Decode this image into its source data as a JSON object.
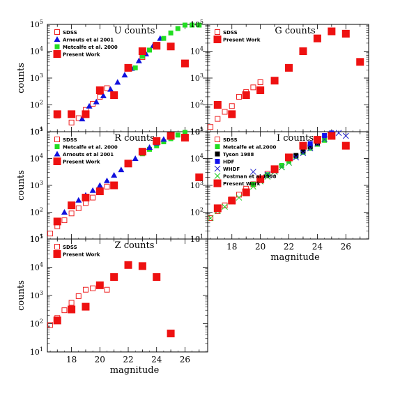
{
  "colors": {
    "sdss": "#ee2222",
    "present": "#ee1111",
    "arnouts": "#1111dd",
    "metcalfe": "#22dd22",
    "tyson": "#000000",
    "hdf": "#1111ee",
    "whdf": "#2222cc",
    "postman": "#22cc22"
  },
  "labels": {
    "counts_ylabel": "counts",
    "magnitude_xlabel": "magnitude"
  },
  "chart_data": [
    {
      "type": "scatter",
      "panel": "U",
      "title": "U counts",
      "ylabel": "counts",
      "xlabel": "",
      "xlim": [
        16.3,
        27.6
      ],
      "ylim": [
        10,
        100000
      ],
      "yscale": "log",
      "legend": [
        "SDSS",
        "Arnouts et al 2001",
        "Metcalfe et al. 2000",
        "Present Work"
      ],
      "legend_position": "top-left",
      "series": [
        {
          "name": "SDSS",
          "marker": "open-square",
          "points": [
            [
              17,
              40
            ],
            [
              18,
              22
            ],
            [
              18.5,
              32
            ],
            [
              19,
              65
            ],
            [
              19.5,
              110
            ],
            [
              20,
              200
            ],
            [
              20.5,
              420
            ],
            [
              23,
              6000
            ]
          ]
        },
        {
          "name": "Arnouts et al 2001",
          "marker": "triangle",
          "points": [
            [
              18.75,
              30
            ],
            [
              19.25,
              90
            ],
            [
              19.75,
              130
            ],
            [
              20.25,
              220
            ],
            [
              20.75,
              380
            ],
            [
              21.25,
              700
            ],
            [
              21.75,
              1300
            ],
            [
              22.25,
              2300
            ],
            [
              22.75,
              4400
            ],
            [
              23.25,
              8000
            ],
            [
              23.75,
              16000
            ],
            [
              24.25,
              30000
            ]
          ]
        },
        {
          "name": "Metcalfe et al. 2000",
          "marker": "filled-square",
          "points": [
            [
              22.5,
              2400
            ],
            [
              23,
              6500
            ],
            [
              23.5,
              11000
            ],
            [
              24,
              18000
            ],
            [
              24.5,
              30000
            ],
            [
              25,
              48000
            ],
            [
              25.5,
              70000
            ],
            [
              26,
              95000
            ],
            [
              26.5,
              120000
            ],
            [
              27,
              140000
            ]
          ]
        },
        {
          "name": "Present Work",
          "marker": "big-filled-square",
          "points": [
            [
              17,
              45
            ],
            [
              18,
              45
            ],
            [
              19,
              45
            ],
            [
              20,
              350
            ],
            [
              21,
              230
            ],
            [
              22,
              2400
            ],
            [
              23,
              10000
            ],
            [
              24,
              16000
            ],
            [
              25,
              15000
            ],
            [
              26,
              3500
            ]
          ]
        }
      ]
    },
    {
      "type": "scatter",
      "panel": "G",
      "title": "G counts",
      "xlim": [
        16.3,
        27.6
      ],
      "ylim": [
        10,
        100000
      ],
      "yscale": "log",
      "legend": [
        "SDSS",
        "Present Work"
      ],
      "legend_position": "top-left",
      "series": [
        {
          "name": "SDSS",
          "marker": "open-square",
          "points": [
            [
              16.5,
              15
            ],
            [
              17,
              30
            ],
            [
              17.5,
              55
            ],
            [
              18,
              90
            ],
            [
              18.5,
              200
            ],
            [
              19,
              300
            ],
            [
              19.5,
              450
            ],
            [
              20,
              700
            ]
          ]
        },
        {
          "name": "Present Work",
          "marker": "big-filled-square",
          "points": [
            [
              17,
              100
            ],
            [
              18,
              45
            ],
            [
              19,
              230
            ],
            [
              20,
              350
            ],
            [
              21,
              800
            ],
            [
              22,
              2400
            ],
            [
              23,
              10000
            ],
            [
              24,
              30000
            ],
            [
              25,
              55000
            ],
            [
              26,
              45000
            ],
            [
              27,
              4000
            ]
          ]
        }
      ]
    },
    {
      "type": "scatter",
      "panel": "R",
      "title": "R counts",
      "ylabel": "counts",
      "xlim": [
        16.3,
        27.6
      ],
      "ylim": [
        10,
        100000
      ],
      "yscale": "log",
      "legend": [
        "SDSS",
        "Metcalfe et al. 2000",
        "Arnouts et al 2001",
        "Present Work"
      ],
      "legend_position": "top-left",
      "series": [
        {
          "name": "SDSS",
          "marker": "open-square",
          "points": [
            [
              16.5,
              16
            ],
            [
              17,
              30
            ],
            [
              17.5,
              50
            ],
            [
              18,
              90
            ],
            [
              18.5,
              140
            ],
            [
              19,
              220
            ],
            [
              19.5,
              350
            ],
            [
              20,
              550
            ],
            [
              20.5,
              900
            ]
          ]
        },
        {
          "name": "Metcalfe et al. 2000",
          "marker": "filled-square",
          "points": [
            [
              23,
              15000
            ],
            [
              23.5,
              22000
            ],
            [
              24,
              30000
            ],
            [
              24.5,
              42000
            ],
            [
              25,
              55000
            ],
            [
              25.5,
              75000
            ],
            [
              26,
              95000
            ]
          ]
        },
        {
          "name": "Arnouts et al 2001",
          "marker": "triangle",
          "points": [
            [
              17.5,
              100
            ],
            [
              18,
              180
            ],
            [
              18.5,
              280
            ],
            [
              19,
              430
            ],
            [
              19.5,
              650
            ],
            [
              20,
              1000
            ],
            [
              20.5,
              1500
            ],
            [
              21,
              2400
            ],
            [
              21.5,
              3800
            ],
            [
              22,
              6000
            ],
            [
              22.5,
              10000
            ],
            [
              23,
              17000
            ],
            [
              23.5,
              26000
            ],
            [
              24,
              38000
            ],
            [
              24.5,
              52000
            ]
          ]
        },
        {
          "name": "Present Work",
          "marker": "big-filled-square",
          "points": [
            [
              17,
              45
            ],
            [
              18,
              180
            ],
            [
              19,
              350
            ],
            [
              20,
              600
            ],
            [
              21,
              1000
            ],
            [
              22,
              6500
            ],
            [
              23,
              18000
            ],
            [
              24,
              45000
            ],
            [
              25,
              70000
            ],
            [
              26,
              60000
            ],
            [
              27,
              2000
            ]
          ]
        }
      ]
    },
    {
      "type": "scatter",
      "panel": "I",
      "title": "I counts",
      "xlabel": "magnitude",
      "xlim": [
        16.3,
        27.6
      ],
      "ylim": [
        10,
        100000
      ],
      "yscale": "log",
      "xticks": [
        18,
        20,
        22,
        24,
        26
      ],
      "legend": [
        "SDSS",
        "Metcalfe et al.2000",
        "Tyson 1988",
        "HDF",
        "WHDF",
        "Postman et al 1998",
        "Present Work"
      ],
      "legend_position": "top-left",
      "series": [
        {
          "name": "SDSS",
          "marker": "open-square",
          "points": [
            [
              16.5,
              60
            ],
            [
              17,
              110
            ],
            [
              17.5,
              180
            ],
            [
              18,
              300
            ],
            [
              18.5,
              450
            ],
            [
              19,
              750
            ],
            [
              19.5,
              1100
            ],
            [
              20,
              1700
            ],
            [
              20.5,
              2700
            ]
          ]
        },
        {
          "name": "Metcalfe et al.2000",
          "marker": "filled-square",
          "points": [
            [
              19.5,
              1100
            ],
            [
              20,
              1600
            ],
            [
              20.5,
              2500
            ],
            [
              21,
              3800
            ],
            [
              21.5,
              5500
            ],
            [
              22,
              8000
            ],
            [
              22.5,
              12000
            ],
            [
              23,
              17000
            ],
            [
              23.5,
              24000
            ],
            [
              24,
              34000
            ],
            [
              24.5,
              48000
            ]
          ]
        },
        {
          "name": "Tyson 1988",
          "marker": "filled-square",
          "points": [
            [
              22.5,
              13000
            ],
            [
              23,
              19000
            ],
            [
              23.5,
              28000
            ],
            [
              24,
              38000
            ]
          ]
        },
        {
          "name": "HDF",
          "marker": "filled-square",
          "points": [
            [
              23.5,
              36000
            ],
            [
              24,
              52000
            ],
            [
              24.5,
              72000
            ],
            [
              25,
              90000
            ]
          ]
        },
        {
          "name": "WHDF",
          "marker": "x",
          "points": [
            [
              19.5,
              3200
            ],
            [
              20,
              1500
            ],
            [
              20.5,
              2500
            ],
            [
              21,
              3300
            ],
            [
              21.5,
              4800
            ],
            [
              22,
              7000
            ],
            [
              22.5,
              11000
            ],
            [
              23,
              16000
            ],
            [
              23.5,
              24000
            ],
            [
              24,
              36000
            ],
            [
              24.5,
              52000
            ],
            [
              25,
              70000
            ],
            [
              25.5,
              90000
            ],
            [
              26,
              70000
            ]
          ]
        },
        {
          "name": "Postman et al 1998",
          "marker": "x-green",
          "points": [
            [
              16.5,
              60
            ],
            [
              17,
              110
            ],
            [
              17.5,
              160
            ],
            [
              18,
              250
            ],
            [
              18.5,
              350
            ],
            [
              19,
              600
            ],
            [
              19.5,
              900
            ],
            [
              20,
              1400
            ],
            [
              20.5,
              2100
            ],
            [
              21,
              3200
            ],
            [
              21.5,
              4700
            ],
            [
              22,
              7000
            ]
          ]
        },
        {
          "name": "Present Work",
          "marker": "big-filled-square",
          "points": [
            [
              17,
              140
            ],
            [
              18,
              270
            ],
            [
              19,
              550
            ],
            [
              20,
              1700
            ],
            [
              21,
              4000
            ],
            [
              22,
              11000
            ],
            [
              23,
              30000
            ],
            [
              24,
              50000
            ],
            [
              25,
              70000
            ],
            [
              26,
              30000
            ]
          ]
        }
      ]
    },
    {
      "type": "scatter",
      "panel": "Z",
      "title": "Z counts",
      "ylabel": "counts",
      "xlabel": "magnitude",
      "xlim": [
        16.3,
        27.6
      ],
      "ylim": [
        10,
        100000
      ],
      "yscale": "log",
      "xticks": [
        18,
        20,
        22,
        24,
        26
      ],
      "legend": [
        "SDSS",
        "Present Work"
      ],
      "legend_position": "top-left",
      "series": [
        {
          "name": "SDSS",
          "marker": "open-square",
          "points": [
            [
              16.5,
              90
            ],
            [
              17,
              160
            ],
            [
              17.5,
              300
            ],
            [
              18,
              550
            ],
            [
              18.5,
              950
            ],
            [
              19,
              1600
            ],
            [
              19.5,
              1800
            ],
            [
              20,
              2200
            ],
            [
              20.5,
              1600
            ]
          ]
        },
        {
          "name": "Present Work",
          "marker": "big-filled-square",
          "points": [
            [
              17,
              130
            ],
            [
              18,
              320
            ],
            [
              19,
              400
            ],
            [
              20,
              2300
            ],
            [
              21,
              4500
            ],
            [
              22,
              12000
            ],
            [
              23,
              11000
            ],
            [
              24,
              4500
            ],
            [
              25,
              45
            ]
          ]
        }
      ]
    }
  ]
}
